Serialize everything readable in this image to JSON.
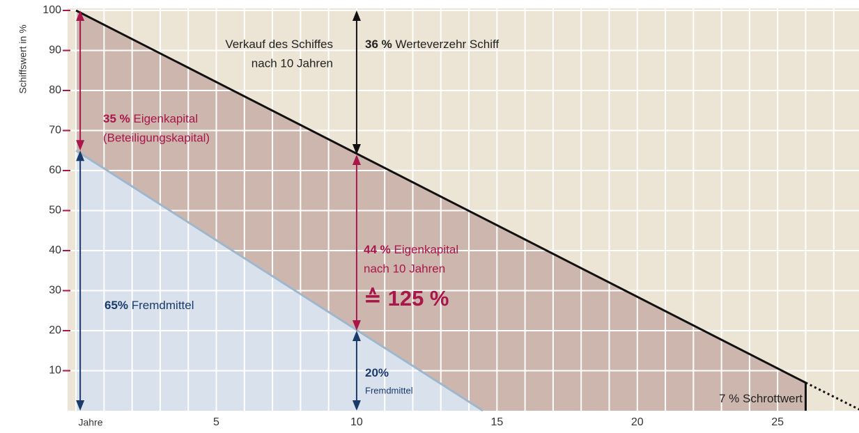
{
  "chart_data": {
    "type": "line",
    "ylabel": "Schiffswert in %",
    "xlabel": "Jahre",
    "xlim": [
      -0.3,
      27.9
    ],
    "ylim": [
      0,
      100
    ],
    "xticks": [
      5,
      10,
      15,
      20,
      25
    ],
    "yticks": [
      10,
      20,
      30,
      40,
      50,
      60,
      70,
      80,
      90,
      100
    ],
    "grid": true,
    "xminor": 1,
    "background": "#ece4d5",
    "grid_color": "#ffffff",
    "tick_color": "#a8164a",
    "series": [
      {
        "x": [
          0,
          26
        ],
        "values": [
          100,
          7
        ],
        "color": "#111111",
        "fill": "#cdb6ad",
        "dash": false
      },
      {
        "x": [
          26,
          28
        ],
        "values": [
          7,
          0
        ],
        "color": "#111111",
        "dash": true
      },
      {
        "x": [
          0,
          14.5
        ],
        "values": [
          65,
          0
        ],
        "color": "#9fb7cc",
        "fill": "#d9e2ec",
        "dash": false
      }
    ],
    "arrows": [
      {
        "x": 10,
        "y": [
          64,
          100
        ],
        "color": "#111111",
        "heads": true
      },
      {
        "x": 0.15,
        "y": [
          65,
          100
        ],
        "color": "#a8164a",
        "heads": true
      },
      {
        "x": 10,
        "y": [
          20,
          64
        ],
        "color": "#a8164a",
        "heads": true
      },
      {
        "x": 0.15,
        "y": [
          0,
          65
        ],
        "color": "#1a3a6b",
        "heads": true
      },
      {
        "x": 10,
        "y": [
          0,
          20
        ],
        "color": "#1a3a6b",
        "heads": true
      },
      {
        "x": 26,
        "y": [
          0,
          7
        ],
        "color": "#111111",
        "heads": false
      }
    ],
    "annotations": [
      {
        "text": "Verkauf des Schiffes",
        "more": [
          "nach 10 Jahren"
        ],
        "color": "#222222"
      },
      {
        "bold": "36 %",
        "text": "Werteverzehr Schiff",
        "color": "#222222"
      },
      {
        "bold": "35 %",
        "text": "Eigenkapital",
        "more": [
          "(Beteiligungskapital)"
        ],
        "color": "#a8164a"
      },
      {
        "bold": "44 %",
        "text": "Eigenkapital",
        "more": [
          "nach 10 Jahren"
        ],
        "big": "≙ 125 %",
        "color": "#a8164a"
      },
      {
        "bold": "65%",
        "text": "Fremdmittel",
        "color": "#1a3a6b"
      },
      {
        "bold": "20%",
        "more": [
          "Fremdmittel"
        ],
        "color": "#1a3a6b"
      },
      {
        "text": "7 % Schrottwert",
        "color": "#222222"
      }
    ]
  }
}
